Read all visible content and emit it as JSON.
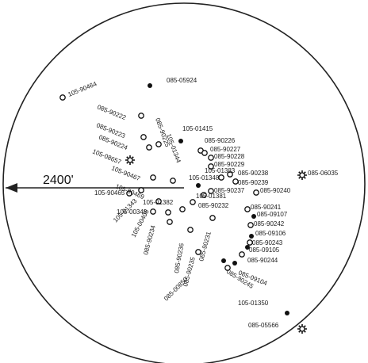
{
  "scale": {
    "label": "2400'"
  },
  "symbols": {
    "open": "open-circle",
    "filled": "filled-circle",
    "star": "star-gear"
  },
  "wells": [
    {
      "id": "w01",
      "label": "105-90464",
      "symbol": "open"
    },
    {
      "id": "w02",
      "label": "085-05924",
      "symbol": "filled"
    },
    {
      "id": "w03",
      "label": "085-90222",
      "symbol": "open"
    },
    {
      "id": "w04",
      "label": "085-90223",
      "symbol": "open"
    },
    {
      "id": "w05",
      "label": "085-90224",
      "symbol": "open"
    },
    {
      "id": "w06",
      "label": "105-08657",
      "symbol": "star"
    },
    {
      "id": "w07",
      "label": "105-90467",
      "symbol": "open"
    },
    {
      "id": "w08",
      "label": "105-90465",
      "symbol": "open"
    },
    {
      "id": "w09",
      "label": "105-90469",
      "symbol": "open"
    },
    {
      "id": "w10",
      "label": "105-01415",
      "symbol": "filled"
    },
    {
      "id": "w11",
      "label": "085-90226",
      "symbol": "open"
    },
    {
      "id": "w12",
      "label": "085-90227",
      "symbol": "open"
    },
    {
      "id": "w13",
      "label": "085-90228",
      "symbol": "open"
    },
    {
      "id": "w14",
      "label": "085-90229",
      "symbol": "open"
    },
    {
      "id": "w15",
      "label": "085-90238",
      "symbol": "open"
    },
    {
      "id": "w16",
      "label": "085-90239",
      "symbol": "open"
    },
    {
      "id": "w17",
      "label": "085-90240",
      "symbol": "open"
    },
    {
      "id": "w18",
      "label": "085-06035",
      "symbol": "star"
    },
    {
      "id": "w19",
      "label": "105-01383",
      "symbol": "open"
    },
    {
      "id": "w20",
      "label": "105-01348",
      "symbol": "filled"
    },
    {
      "id": "w21",
      "label": "085-90237",
      "symbol": "open"
    },
    {
      "id": "w22",
      "label": "085-90241",
      "symbol": "open"
    },
    {
      "id": "w23",
      "label": "085-09107",
      "symbol": "filled"
    },
    {
      "id": "w24",
      "label": "085-90242",
      "symbol": "open"
    },
    {
      "id": "w25",
      "label": "085-09106",
      "symbol": "filled"
    },
    {
      "id": "w26",
      "label": "085-90243",
      "symbol": "open"
    },
    {
      "id": "w27",
      "label": "085-09105",
      "symbol": "filled"
    },
    {
      "id": "w28",
      "label": "085-90244",
      "symbol": "open"
    },
    {
      "id": "w29",
      "label": "085-09104",
      "symbol": "filled"
    },
    {
      "id": "w30",
      "label": "085-90245",
      "symbol": "open"
    },
    {
      "id": "w31",
      "label": "105-01382",
      "symbol": "open"
    },
    {
      "id": "w32",
      "label": "105-00348",
      "symbol": "open"
    },
    {
      "id": "w33",
      "label": "105-01343",
      "symbol": "open"
    },
    {
      "id": "w34",
      "label": "105-00405",
      "symbol": "open"
    },
    {
      "id": "w35",
      "label": "085-90234",
      "symbol": "open"
    },
    {
      "id": "w36",
      "label": "085-90232",
      "symbol": "open"
    },
    {
      "id": "w37",
      "label": "085-90236",
      "symbol": "open"
    },
    {
      "id": "w38",
      "label": "085-90235",
      "symbol": "open"
    },
    {
      "id": "w39",
      "label": "085-90231",
      "symbol": "open"
    },
    {
      "id": "w40",
      "label": "085-00850",
      "symbol": "filled"
    },
    {
      "id": "w41",
      "label": "085-90225",
      "symbol": "open"
    },
    {
      "id": "w42",
      "label": "105-01344",
      "symbol": "open"
    },
    {
      "id": "w43",
      "label": "105-01350",
      "symbol": "filled"
    },
    {
      "id": "w44",
      "label": "085-05566",
      "symbol": "star"
    },
    {
      "id": "w45",
      "label": "105-01381",
      "symbol": "open"
    }
  ]
}
